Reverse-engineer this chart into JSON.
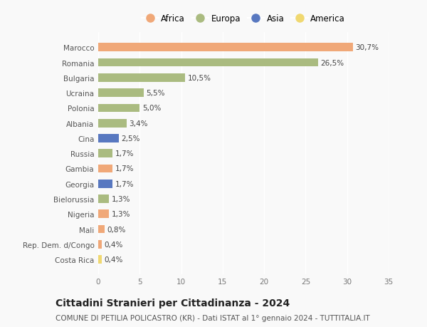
{
  "categories": [
    "Marocco",
    "Romania",
    "Bulgaria",
    "Ucraina",
    "Polonia",
    "Albania",
    "Cina",
    "Russia",
    "Gambia",
    "Georgia",
    "Bielorussia",
    "Nigeria",
    "Mali",
    "Rep. Dem. d/Congo",
    "Costa Rica"
  ],
  "values": [
    30.7,
    26.5,
    10.5,
    5.5,
    5.0,
    3.4,
    2.5,
    1.7,
    1.7,
    1.7,
    1.3,
    1.3,
    0.8,
    0.4,
    0.4
  ],
  "labels": [
    "30,7%",
    "26,5%",
    "10,5%",
    "5,5%",
    "5,0%",
    "3,4%",
    "2,5%",
    "1,7%",
    "1,7%",
    "1,7%",
    "1,3%",
    "1,3%",
    "0,8%",
    "0,4%",
    "0,4%"
  ],
  "continents": [
    "Africa",
    "Europa",
    "Europa",
    "Europa",
    "Europa",
    "Europa",
    "Asia",
    "Europa",
    "Africa",
    "Asia",
    "Europa",
    "Africa",
    "Africa",
    "Africa",
    "America"
  ],
  "colors": {
    "Africa": "#F0A878",
    "Europa": "#AABB80",
    "Asia": "#5878C0",
    "America": "#F0D870"
  },
  "legend_order": [
    "Africa",
    "Europa",
    "Asia",
    "America"
  ],
  "xlim": [
    0,
    35
  ],
  "xticks": [
    0,
    5,
    10,
    15,
    20,
    25,
    30,
    35
  ],
  "title": "Cittadini Stranieri per Cittadinanza - 2024",
  "subtitle": "COMUNE DI PETILIA POLICASTRO (KR) - Dati ISTAT al 1° gennaio 2024 - TUTTITALIA.IT",
  "background_color": "#f9f9f9",
  "bar_height": 0.55,
  "label_fontsize": 7.5,
  "tick_fontsize": 7.5,
  "title_fontsize": 10,
  "subtitle_fontsize": 7.5
}
